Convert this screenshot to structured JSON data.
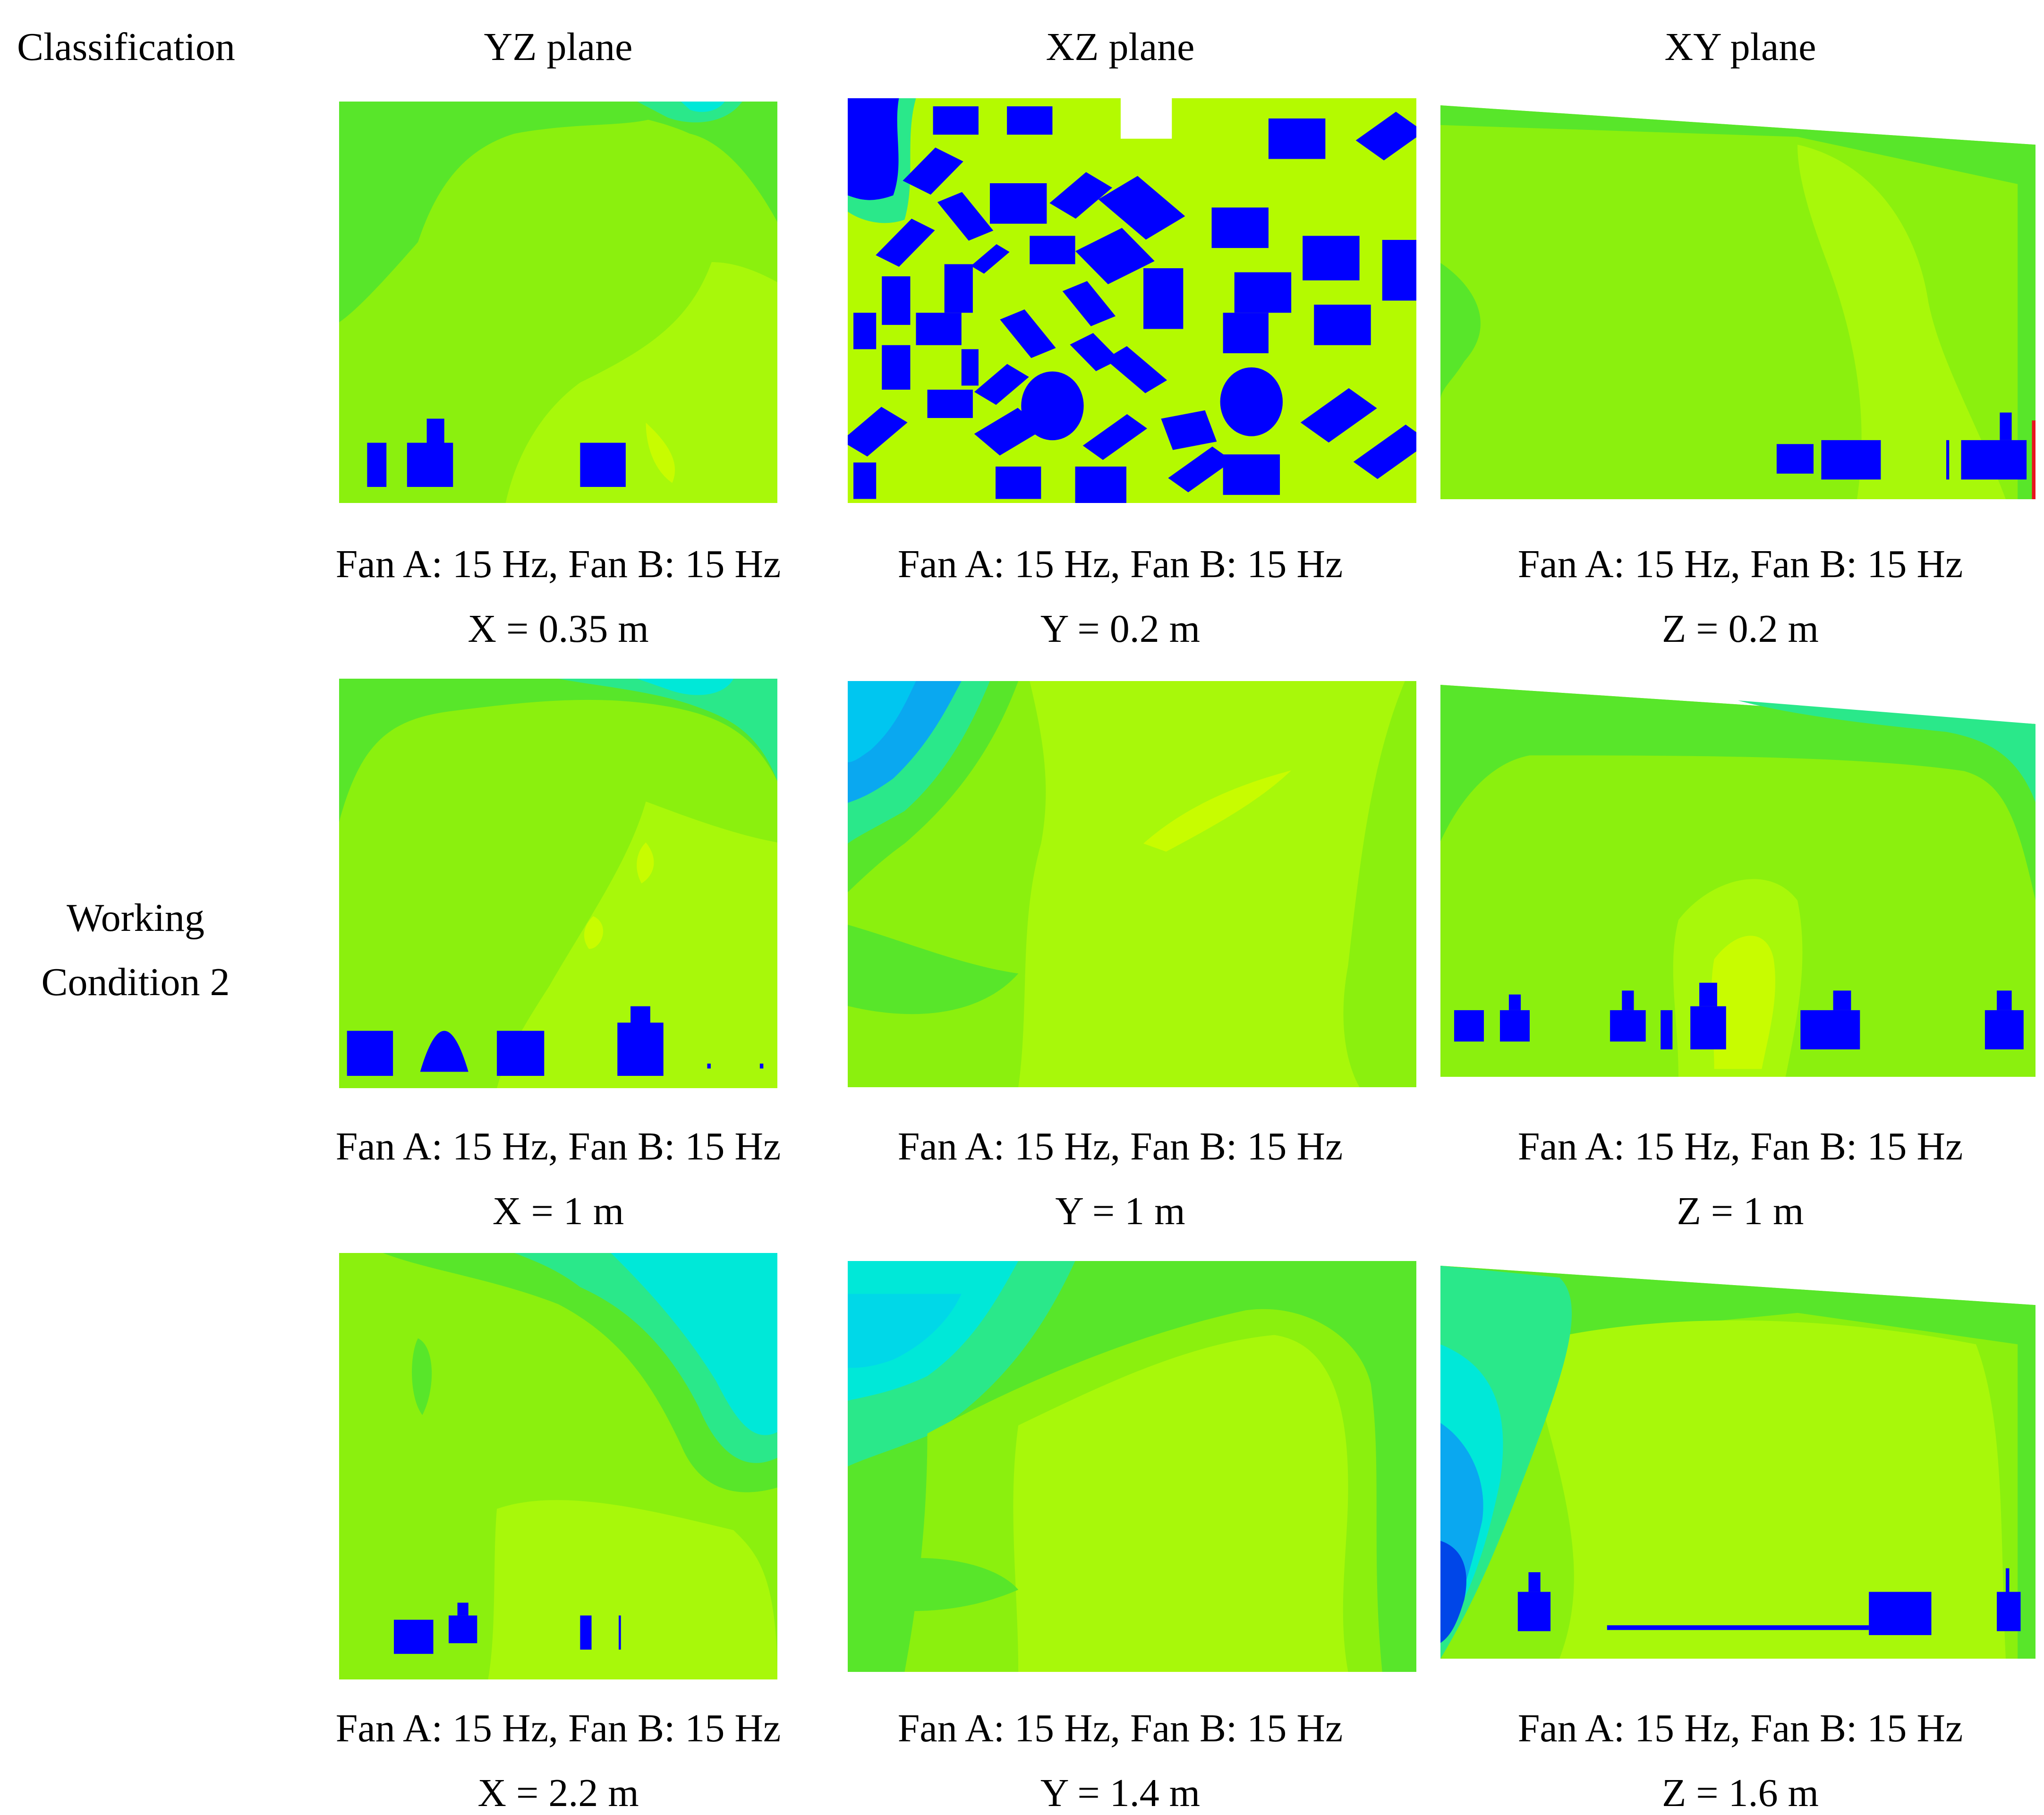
{
  "header": {
    "classification": "Classification",
    "yz": "YZ plane",
    "xz": "XZ plane",
    "xy": "XY plane"
  },
  "row_label": {
    "line1": "Working",
    "line2": "Condition 2"
  },
  "colors": {
    "background": "#ffffff",
    "field_green": "#8BF00E",
    "field_yellow": "#B4FA00",
    "field_mid": "#58E62A",
    "field_cyan": "#00E8D8",
    "field_blue": "#0AA8F0",
    "obstacle": "#0000FF",
    "boundary_red": "#E8141E"
  },
  "rows": [
    {
      "yz": {
        "caption": "Fan A: 15 Hz, Fan B: 15 Hz",
        "position": "X = 0.35 m"
      },
      "xz": {
        "caption": "Fan A: 15 Hz, Fan B: 15 Hz",
        "position": "Y = 0.2 m"
      },
      "xy": {
        "caption": "Fan A: 15 Hz, Fan B: 15 Hz",
        "position": "Z = 0.2 m"
      }
    },
    {
      "yz": {
        "caption": "Fan A: 15 Hz, Fan B: 15 Hz",
        "position": "X = 1 m"
      },
      "xz": {
        "caption": "Fan A: 15 Hz, Fan B: 15 Hz",
        "position": "Y = 1 m"
      },
      "xy": {
        "caption": "Fan A: 15 Hz, Fan B: 15 Hz",
        "position": "Z = 1 m"
      }
    },
    {
      "yz": {
        "caption": "Fan A: 15 Hz, Fan B: 15 Hz",
        "position": "X = 2.2 m"
      },
      "xz": {
        "caption": "Fan A: 15 Hz, Fan B: 15 Hz",
        "position": "Y = 1.4 m"
      },
      "xy": {
        "caption": "Fan A: 15 Hz, Fan B: 15 Hz",
        "position": "Z = 1.6 m"
      }
    }
  ]
}
